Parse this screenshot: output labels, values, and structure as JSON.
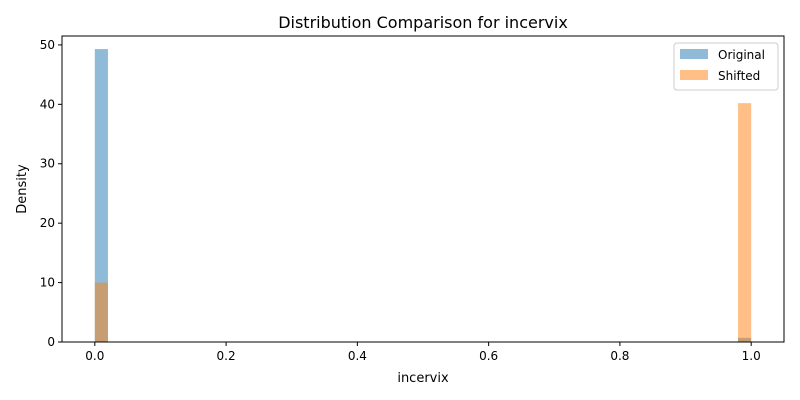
{
  "chart_data": {
    "type": "bar",
    "title": "Distribution Comparison for incervix",
    "xlabel": "incervix",
    "ylabel": "Density",
    "xlim": [
      -0.05,
      1.05
    ],
    "ylim": [
      0,
      51.5
    ],
    "xticks": [
      "0.0",
      "0.2",
      "0.4",
      "0.6",
      "0.8",
      "1.0"
    ],
    "yticks": [
      "0",
      "10",
      "20",
      "30",
      "40",
      "50"
    ],
    "bin_width": 0.02,
    "grid": false,
    "legend_position": "top-right",
    "series": [
      {
        "name": "Original",
        "color": "#1f77b4",
        "opacity": 0.5,
        "bins": [
          {
            "x0": 0.0,
            "x1": 0.02,
            "value": 49.3
          },
          {
            "x0": 0.98,
            "x1": 1.0,
            "value": 0.7
          }
        ]
      },
      {
        "name": "Shifted",
        "color": "#ff7f0e",
        "opacity": 0.5,
        "bins": [
          {
            "x0": 0.0,
            "x1": 0.02,
            "value": 10.0
          },
          {
            "x0": 0.98,
            "x1": 1.0,
            "value": 40.2
          }
        ]
      }
    ]
  }
}
